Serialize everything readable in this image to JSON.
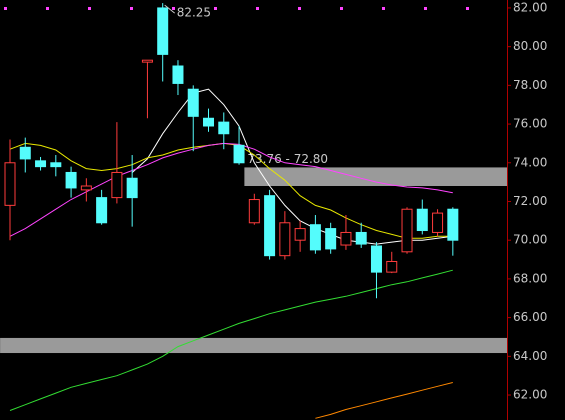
{
  "chart_data": {
    "type": "candlestick",
    "ylim": [
      60.71,
      82.41
    ],
    "yticks": [
      {
        "value": 62,
        "label": "62.00"
      },
      {
        "value": 64,
        "label": "64.00"
      },
      {
        "value": 66,
        "label": "66.00"
      },
      {
        "value": 68,
        "label": "68.00"
      },
      {
        "value": 70,
        "label": "70.00"
      },
      {
        "value": 72,
        "label": "72.00"
      },
      {
        "value": 74,
        "label": "74.00"
      },
      {
        "value": 76,
        "label": "76.00"
      },
      {
        "value": 78,
        "label": "78.00"
      },
      {
        "value": 80,
        "label": "80.00"
      },
      {
        "value": 82,
        "label": "82.00"
      }
    ],
    "up_color": "#ff3c3c",
    "down_color": "#54fcfc",
    "open": [
      71.8,
      74.8,
      74.1,
      74.0,
      73.5,
      72.6,
      72.2,
      72.2,
      73.2,
      79.2,
      82.0,
      79.0,
      77.8,
      76.3,
      76.1,
      74.9,
      70.9,
      72.3,
      69.2,
      70.0,
      70.8,
      70.6,
      69.75,
      70.4,
      69.7,
      68.35,
      69.4,
      71.6,
      70.4,
      71.6
    ],
    "high": [
      75.2,
      75.3,
      74.3,
      74.4,
      73.8,
      73.2,
      72.6,
      76.1,
      74.4,
      79.3,
      82.25,
      79.3,
      78.0,
      76.8,
      76.6,
      75.9,
      72.4,
      72.6,
      71.5,
      71.0,
      71.3,
      70.9,
      71.3,
      70.9,
      69.9,
      69.4,
      71.7,
      72.1,
      71.6,
      71.7
    ],
    "low": [
      70.0,
      73.5,
      73.6,
      73.3,
      72.2,
      72.0,
      70.8,
      71.9,
      70.7,
      76.3,
      78.2,
      77.5,
      74.6,
      75.6,
      74.7,
      73.9,
      70.8,
      69.0,
      69.0,
      69.4,
      69.3,
      69.3,
      69.5,
      69.6,
      67.0,
      68.3,
      69.3,
      70.3,
      70.2,
      69.2
    ],
    "close": [
      74.0,
      74.2,
      73.8,
      73.8,
      72.7,
      72.8,
      70.9,
      73.5,
      72.2,
      79.3,
      79.6,
      78.1,
      76.4,
      75.9,
      75.5,
      74.0,
      72.1,
      69.2,
      70.9,
      70.6,
      69.5,
      69.55,
      70.4,
      69.8,
      68.35,
      68.9,
      71.6,
      70.5,
      71.4,
      70.0
    ],
    "max_high_label": "82.25",
    "lines": [
      {
        "color": "#ffffff",
        "values": [
          null,
          null,
          null,
          null,
          null,
          null,
          null,
          null,
          73.5,
          74.2,
          75.5,
          76.6,
          77.6,
          77.8,
          77.0,
          75.9,
          74.0,
          72.8,
          71.8,
          71.0,
          70.6,
          70.3,
          70.0,
          69.9,
          69.8,
          69.9,
          70.0,
          70.0,
          70.1,
          70.2
        ]
      },
      {
        "color": "#e8e800",
        "values": [
          74.7,
          75.0,
          74.9,
          74.66,
          74.1,
          73.7,
          73.6,
          73.7,
          73.9,
          74.25,
          74.4,
          74.66,
          74.8,
          74.9,
          75.0,
          74.9,
          74.4,
          73.7,
          73.1,
          72.3,
          71.8,
          71.56,
          71.15,
          70.8,
          70.5,
          70.3,
          70.1,
          70.1,
          70.2,
          70.2
        ]
      },
      {
        "color": "#ff44ff",
        "values": [
          70.2,
          70.6,
          71.1,
          71.6,
          72.1,
          72.5,
          72.9,
          73.3,
          73.6,
          73.9,
          74.25,
          74.5,
          74.7,
          74.9,
          75.0,
          74.95,
          74.7,
          74.3,
          74.0,
          73.9,
          73.8,
          73.6,
          73.4,
          73.2,
          73.0,
          72.85,
          72.75,
          72.7,
          72.6,
          72.45
        ]
      },
      {
        "color": "#33dd33",
        "values": [
          61.2,
          61.5,
          61.8,
          62.1,
          62.4,
          62.6,
          62.8,
          63.0,
          63.3,
          63.6,
          64.0,
          64.5,
          64.8,
          65.1,
          65.4,
          65.7,
          65.95,
          66.2,
          66.4,
          66.6,
          66.8,
          66.95,
          67.1,
          67.3,
          67.5,
          67.7,
          67.85,
          68.05,
          68.25,
          68.45
        ]
      },
      {
        "color": "#ff8800",
        "values": [
          null,
          null,
          null,
          null,
          null,
          null,
          null,
          null,
          null,
          null,
          null,
          null,
          null,
          null,
          null,
          null,
          null,
          null,
          null,
          null,
          60.8,
          61.0,
          61.25,
          61.45,
          61.65,
          61.85,
          62.05,
          62.25,
          62.45,
          62.65
        ]
      }
    ],
    "zones": [
      {
        "from": 72.8,
        "to": 73.76,
        "label": "73.76 - 72.80",
        "start": 16,
        "color": "#9a9a9a"
      },
      {
        "from": 64.17,
        "to": 64.95,
        "start": 0,
        "color": "#9a9a9a"
      }
    ]
  }
}
